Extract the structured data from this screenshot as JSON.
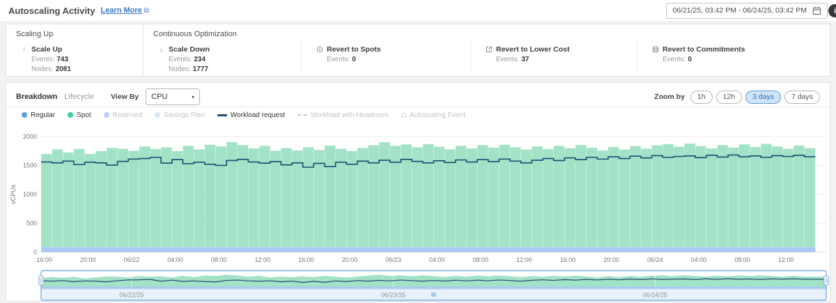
{
  "header": {
    "title": "Autoscaling Activity",
    "learn_more": "Learn More",
    "date_range": "06/21/25, 03:42 PM - 06/24/25, 03:42 PM",
    "info_icon_glyph": "i"
  },
  "icons": {
    "external_link": "⧉",
    "chevron_down": "▾",
    "arrow_up": "↑",
    "arrow_down": "↓"
  },
  "stats": {
    "groups": [
      {
        "title": "Scaling Up",
        "items": [
          {
            "icon": "arrow-up",
            "name": "Scale Up",
            "metrics": [
              {
                "label": "Events:",
                "value": "743"
              },
              {
                "label": "Nodes:",
                "value": "2081"
              }
            ]
          }
        ]
      },
      {
        "title": "Continuous Optimization",
        "items": [
          {
            "icon": "arrow-down",
            "name": "Scale Down",
            "metrics": [
              {
                "label": "Events:",
                "value": "234"
              },
              {
                "label": "Nodes:",
                "value": "1777"
              }
            ]
          },
          {
            "icon": "target",
            "name": "Revert to Spots",
            "metrics": [
              {
                "label": "Events:",
                "value": "0"
              }
            ]
          },
          {
            "icon": "arrow-out",
            "name": "Revert to Lower Cost",
            "metrics": [
              {
                "label": "Events:",
                "value": "37"
              }
            ]
          },
          {
            "icon": "stack",
            "name": "Revert to Commitments",
            "metrics": [
              {
                "label": "Events:",
                "value": "0"
              }
            ]
          }
        ]
      }
    ]
  },
  "controls": {
    "tabs": [
      {
        "label": "Breakdown",
        "active": true
      },
      {
        "label": "Lifecycle",
        "active": false
      }
    ],
    "view_by_label": "View By",
    "view_by_value": "CPU",
    "zoom_label": "Zoom by",
    "zoom_options": [
      {
        "label": "1h",
        "active": false
      },
      {
        "label": "12h",
        "active": false
      },
      {
        "label": "3 days",
        "active": true
      },
      {
        "label": "7 days",
        "active": false
      }
    ]
  },
  "legend": [
    {
      "label": "Regular",
      "marker": "dot",
      "color": "#5d9fe0",
      "active": true
    },
    {
      "label": "Spot",
      "marker": "dot",
      "color": "#38cf9e",
      "active": true
    },
    {
      "label": "Reserved",
      "marker": "dot",
      "color": "#b9d4f1",
      "active": false
    },
    {
      "label": "Savings Plan",
      "marker": "dot",
      "color": "#d4e7f8",
      "active": false
    },
    {
      "label": "Workload request",
      "marker": "line",
      "color": "#1e4b72",
      "active": true
    },
    {
      "label": "Workload with Headroom",
      "marker": "dash",
      "color": "#cfcfcf",
      "active": false
    },
    {
      "label": "Autoscaling Event",
      "marker": "circle",
      "color": "#cfcfcf",
      "active": false
    }
  ],
  "colors": {
    "regular_area": "#a9c9f2",
    "spot_area": "#a2e2c6",
    "workload_line": "#1e4b72",
    "grid": "#ececec",
    "axis_line": "#d8d8d8",
    "nav_frame": "#7fb0e3",
    "nav_scrollbar_bg": "#e9f2fc",
    "nav_scrollbar_border": "#c9def5",
    "nav_handle_fill": "#eef3fa",
    "nav_handle_stroke": "#9ab6da",
    "nav_grip": "#aac9ee"
  },
  "chart_data": {
    "type": "area",
    "title": "",
    "xlabel": "",
    "ylabel": "vCPUs",
    "ylim": [
      0,
      2000
    ],
    "yticks": [
      0,
      500,
      1000,
      1500,
      2000
    ],
    "x_range_hours": 72,
    "x_start_label": "06/21/25 15:42",
    "interval_hours": 1,
    "xtick_start_hour": 0.3,
    "xtick_interval_hours": 4,
    "xtick_labels": [
      "16:00",
      "20:00",
      "06/22",
      "04:00",
      "08:00",
      "12:00",
      "16:00",
      "20:00",
      "06/23",
      "04:00",
      "08:00",
      "12:00",
      "16:00",
      "20:00",
      "06/24",
      "04:00",
      "08:00",
      "12:00"
    ],
    "series": [
      {
        "name": "Regular",
        "render": "area",
        "color_key": "regular_area",
        "constant": 90
      },
      {
        "name": "Spot",
        "render": "stacked-area-top",
        "color_key": "spot_area",
        "values": [
          1700,
          1780,
          1725,
          1785,
          1700,
          1750,
          1805,
          1790,
          1755,
          1830,
          1785,
          1815,
          1750,
          1840,
          1780,
          1860,
          1830,
          1905,
          1855,
          1795,
          1840,
          1755,
          1800,
          1760,
          1815,
          1770,
          1845,
          1790,
          1750,
          1805,
          1850,
          1905,
          1840,
          1865,
          1815,
          1870,
          1825,
          1780,
          1840,
          1795,
          1855,
          1810,
          1860,
          1815,
          1775,
          1830,
          1785,
          1840,
          1800,
          1855,
          1805,
          1760,
          1820,
          1775,
          1835,
          1790,
          1850,
          1870,
          1825,
          1880,
          1835,
          1795,
          1855,
          1810,
          1865,
          1820,
          1875,
          1830,
          1790,
          1845,
          1800
        ]
      },
      {
        "name": "Workload request",
        "render": "step-line",
        "color_key": "workload_line",
        "values": [
          1560,
          1545,
          1575,
          1515,
          1555,
          1545,
          1505,
          1570,
          1610,
          1620,
          1640,
          1540,
          1600,
          1530,
          1555,
          1520,
          1500,
          1585,
          1605,
          1560,
          1540,
          1565,
          1510,
          1545,
          1470,
          1535,
          1480,
          1555,
          1520,
          1575,
          1545,
          1590,
          1555,
          1605,
          1570,
          1545,
          1580,
          1550,
          1595,
          1560,
          1600,
          1565,
          1610,
          1575,
          1545,
          1590,
          1620,
          1585,
          1630,
          1600,
          1640,
          1610,
          1650,
          1620,
          1660,
          1630,
          1670,
          1640,
          1655,
          1665,
          1635,
          1675,
          1645,
          1680,
          1650,
          1665,
          1640,
          1670,
          1655,
          1675,
          1650
        ]
      }
    ],
    "navigator": {
      "date_labels": [
        {
          "t": 8.3,
          "label": "06/22/25"
        },
        {
          "t": 32.3,
          "label": "06/23/25"
        },
        {
          "t": 56.3,
          "label": "06/24/25"
        }
      ]
    }
  }
}
